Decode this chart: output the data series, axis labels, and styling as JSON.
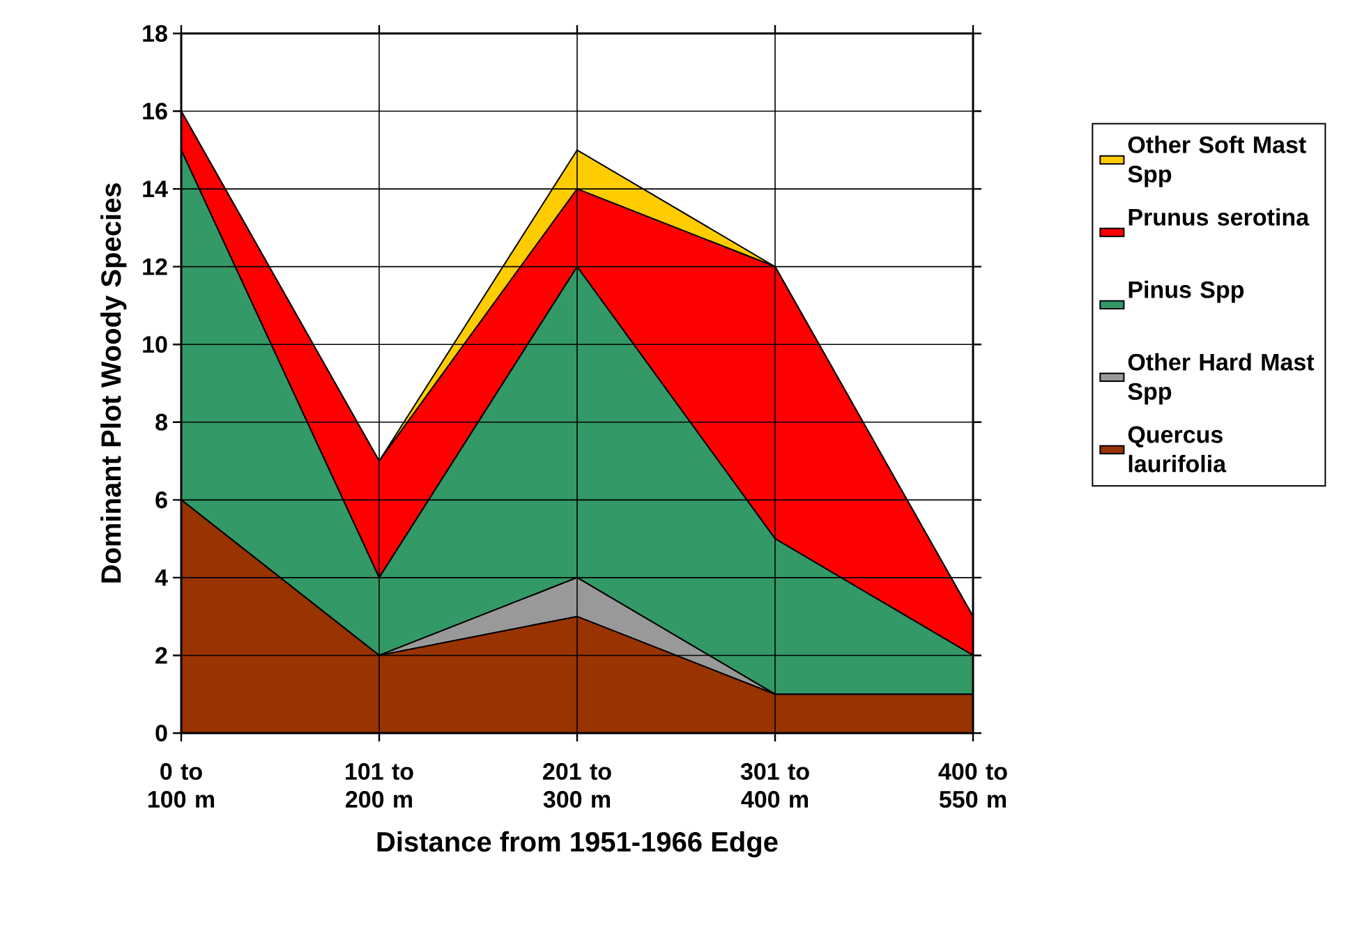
{
  "chart_data": {
    "type": "area",
    "stacked": true,
    "xlabel": "Distance from 1951-1966 Edge",
    "ylabel": "Dominant Plot Woody Species",
    "categories": [
      "0 to 100 m",
      "101 to 200 m",
      "201 to 300 m",
      "301 to 400 m",
      "400 to 550 m"
    ],
    "series": [
      {
        "name": "Quercus laurifolia",
        "color": "#993300",
        "values": [
          6,
          2,
          3,
          1,
          1
        ]
      },
      {
        "name": "Other Hard Mast Spp",
        "color": "#999999",
        "values": [
          0,
          0,
          1,
          0,
          0
        ]
      },
      {
        "name": "Pinus Spp",
        "color": "#339966",
        "values": [
          9,
          2,
          8,
          4,
          1
        ]
      },
      {
        "name": "Prunus serotina",
        "color": "#ff0000",
        "values": [
          1,
          3,
          2,
          7,
          1
        ]
      },
      {
        "name": "Other Soft Mast Spp",
        "color": "#ffcc00",
        "values": [
          0,
          0,
          1,
          0,
          0
        ]
      }
    ],
    "ylim": [
      0,
      18
    ],
    "yticks": [
      0,
      2,
      4,
      6,
      8,
      10,
      12,
      14,
      16,
      18
    ],
    "grid": true,
    "legend": "right"
  }
}
